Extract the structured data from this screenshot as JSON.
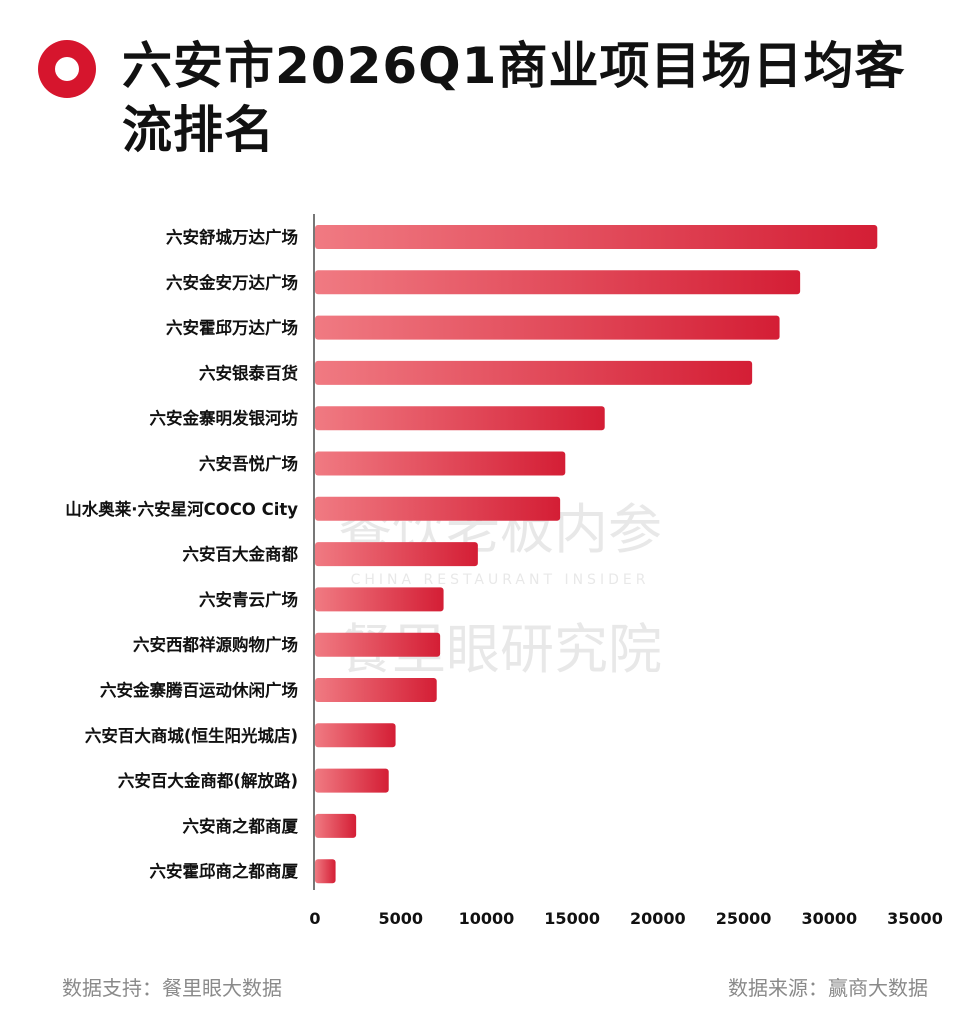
{
  "title": "六安市2026Q1商业项目场日均客流排名",
  "chart_data": {
    "type": "bar",
    "orientation": "horizontal",
    "title": "六安市2026Q1商业项目场日均客流排名",
    "categories": [
      "六安舒城万达广场",
      "六安金安万达广场",
      "六安霍邱万达广场",
      "六安银泰百货",
      "六安金寨明发银河坊",
      "六安吾悦广场",
      "山水奥莱·六安星河COCO City",
      "六安百大金商都",
      "六安青云广场",
      "六安西都祥源购物广场",
      "六安金寨腾百运动休闲广场",
      "六安百大商城(恒生阳光城店)",
      "六安百大金商都(解放路)",
      "六安商之都商厦",
      "六安霍邱商之都商厦"
    ],
    "values": [
      32800,
      28300,
      27100,
      25500,
      16900,
      14600,
      14300,
      9500,
      7500,
      7300,
      7100,
      4700,
      4300,
      2400,
      1200
    ],
    "xlim": [
      0,
      35000
    ],
    "xticks": [
      0,
      5000,
      10000,
      15000,
      20000,
      25000,
      30000,
      35000
    ],
    "grid": false,
    "colors": {
      "bar_start": "#f07a82",
      "bar_end": "#d41e35",
      "accent": "#d6152d"
    }
  },
  "watermark": {
    "line1": "餐饮老板内参",
    "line2": "CHINA RESTAURANT INSIDER",
    "line3": "餐里眼研究院"
  },
  "footer": {
    "left": "数据支持：餐里眼大数据",
    "right": "数据来源：赢商大数据"
  }
}
